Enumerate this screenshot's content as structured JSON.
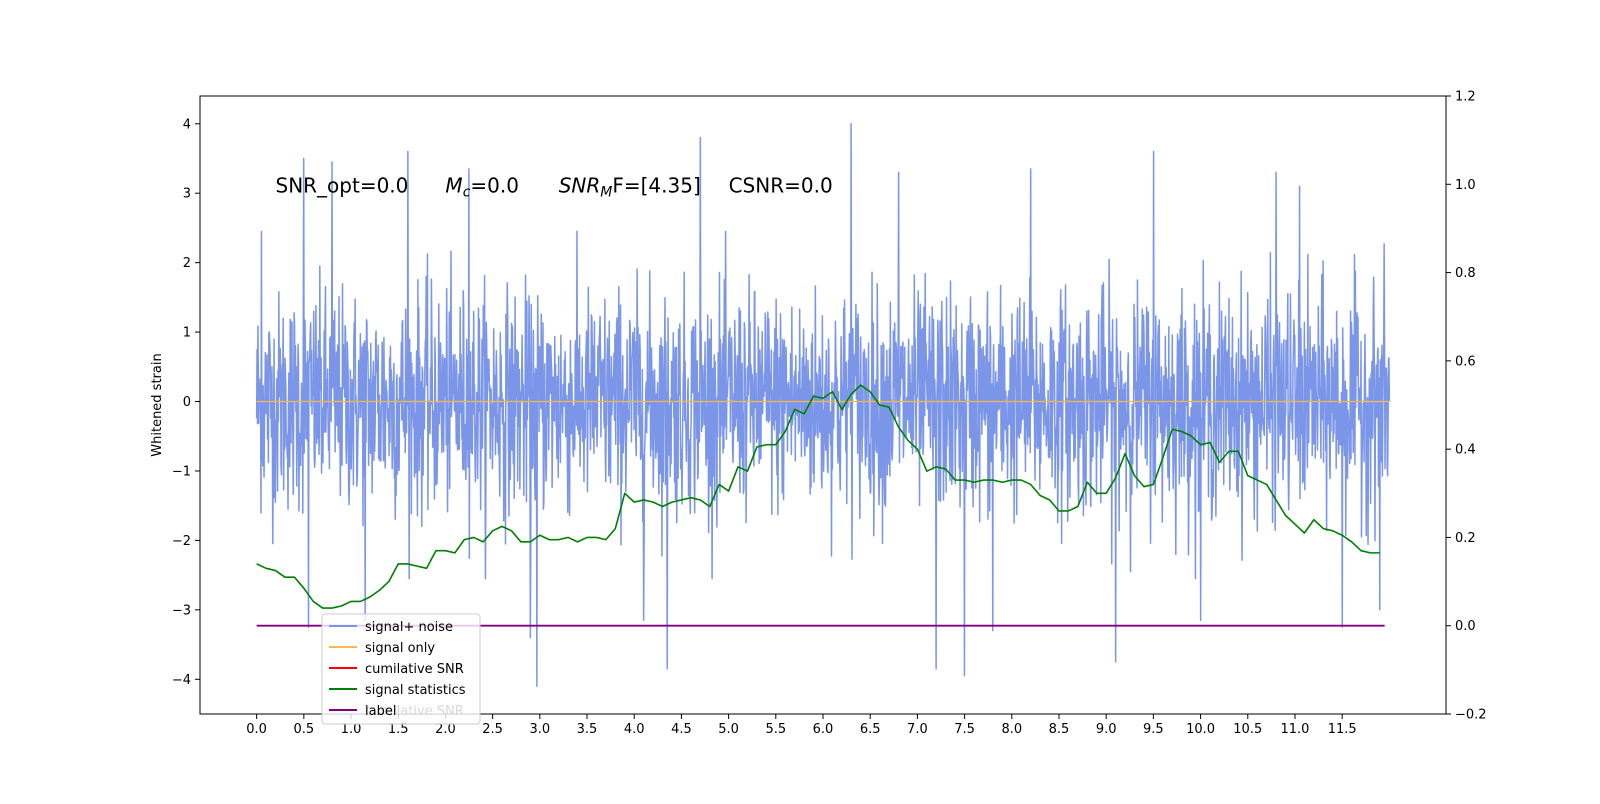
{
  "chart_data": {
    "type": "line",
    "title": "",
    "xlabel": "",
    "ylabel": "Whitened strain",
    "xlim": [
      -0.6,
      12.6
    ],
    "ylim": [
      -4.5,
      4.4
    ],
    "y2lim": [
      -0.2,
      1.2
    ],
    "xticks": [
      0.0,
      0.5,
      1.0,
      1.5,
      2.0,
      2.5,
      3.0,
      3.5,
      4.0,
      4.5,
      5.0,
      5.5,
      6.0,
      6.5,
      7.0,
      7.5,
      8.0,
      8.5,
      9.0,
      9.5,
      10.0,
      10.5,
      11.0,
      11.5
    ],
    "xtick_labels": [
      "0.0",
      "0.5",
      "1.0",
      "1.5",
      "2.0",
      "2.5",
      "3.0",
      "3.5",
      "4.0",
      "4.5",
      "5.0",
      "5.5",
      "6.0",
      "6.5",
      "7.0",
      "7.5",
      "8.0",
      "8.5",
      "9.0",
      "9.5",
      "10.0",
      "10.5",
      "11.0",
      "11.5"
    ],
    "yticks": [
      -4,
      -3,
      -2,
      -1,
      0,
      1,
      2,
      3,
      4
    ],
    "ytick_labels": [
      "−4",
      "−3",
      "−2",
      "−1",
      "0",
      "1",
      "2",
      "3",
      "4"
    ],
    "y2ticks": [
      -0.2,
      0.0,
      0.2,
      0.4,
      0.6,
      0.8,
      1.0,
      1.2
    ],
    "y2tick_labels": [
      "−0.2",
      "0.0",
      "0.2",
      "0.4",
      "0.6",
      "0.8",
      "1.0",
      "1.2"
    ],
    "annotations": [
      {
        "text": "SNR_opt=0.0",
        "x": 0.2,
        "y": 3.1
      },
      {
        "text": "M",
        "sub": "c",
        "rest": "=0.0",
        "x": 2.0,
        "y": 3.1
      },
      {
        "text": "SNR",
        "sub": "M",
        "rest": "F=[4.35]",
        "x": 3.2,
        "y": 3.1
      },
      {
        "text": "CSNR=0.0",
        "x": 5.0,
        "y": 3.1
      }
    ],
    "legend": {
      "placement": "lower-left",
      "entries": [
        "signal+ noise",
        "signal only",
        "cumilative SNR",
        "signal statistics",
        "label"
      ],
      "overlapped_text": "cumilative SNR"
    },
    "series": [
      {
        "name": "signal+ noise",
        "color": "#7b96e8",
        "axis": "left",
        "x_range": [
          0.0,
          12.0
        ],
        "band_typical": [
          -1.6,
          1.6
        ],
        "peaks": [
          {
            "x": 0.05,
            "y": 2.45
          },
          {
            "x": 0.5,
            "y": 3.5
          },
          {
            "x": 0.8,
            "y": 3.45
          },
          {
            "x": 1.6,
            "y": 3.6
          },
          {
            "x": 2.25,
            "y": 3.35
          },
          {
            "x": 4.7,
            "y": 3.8
          },
          {
            "x": 6.3,
            "y": 4.0
          },
          {
            "x": 6.8,
            "y": 3.3
          },
          {
            "x": 8.2,
            "y": 3.35
          },
          {
            "x": 9.5,
            "y": 3.6
          },
          {
            "x": 10.8,
            "y": 3.3
          },
          {
            "x": 11.05,
            "y": 3.1
          }
        ],
        "troughs": [
          {
            "x": 0.55,
            "y": -3.25
          },
          {
            "x": 1.15,
            "y": -3.15
          },
          {
            "x": 2.9,
            "y": -3.4
          },
          {
            "x": 2.97,
            "y": -4.1
          },
          {
            "x": 4.1,
            "y": -3.15
          },
          {
            "x": 4.35,
            "y": -3.85
          },
          {
            "x": 7.2,
            "y": -3.85
          },
          {
            "x": 7.5,
            "y": -3.95
          },
          {
            "x": 7.8,
            "y": -3.3
          },
          {
            "x": 9.1,
            "y": -3.75
          },
          {
            "x": 10.0,
            "y": -3.15
          },
          {
            "x": 11.5,
            "y": -3.25
          },
          {
            "x": 11.9,
            "y": -3.0
          }
        ]
      },
      {
        "name": "signal only",
        "color": "#ffb74d",
        "axis": "left",
        "x": [
          0.0,
          12.0
        ],
        "y": [
          0.0,
          0.0
        ]
      },
      {
        "name": "cumilative SNR",
        "color": "#ff0000",
        "axis": "right",
        "x": [],
        "y": []
      },
      {
        "name": "signal statistics",
        "color": "#008000",
        "axis": "right",
        "x": [
          0.0,
          0.1,
          0.2,
          0.3,
          0.4,
          0.5,
          0.6,
          0.7,
          0.8,
          0.9,
          1.0,
          1.1,
          1.2,
          1.3,
          1.4,
          1.5,
          1.6,
          1.7,
          1.8,
          1.9,
          2.0,
          2.1,
          2.2,
          2.3,
          2.4,
          2.5,
          2.6,
          2.7,
          2.8,
          2.9,
          3.0,
          3.1,
          3.2,
          3.3,
          3.4,
          3.5,
          3.6,
          3.7,
          3.8,
          3.9,
          4.0,
          4.1,
          4.2,
          4.3,
          4.4,
          4.5,
          4.6,
          4.7,
          4.8,
          4.9,
          5.0,
          5.1,
          5.2,
          5.3,
          5.4,
          5.5,
          5.6,
          5.7,
          5.8,
          5.9,
          6.0,
          6.1,
          6.2,
          6.3,
          6.4,
          6.5,
          6.6,
          6.7,
          6.8,
          6.9,
          7.0,
          7.1,
          7.2,
          7.3,
          7.4,
          7.5,
          7.6,
          7.7,
          7.8,
          7.9,
          8.0,
          8.1,
          8.2,
          8.3,
          8.4,
          8.5,
          8.6,
          8.7,
          8.8,
          8.9,
          9.0,
          9.1,
          9.2,
          9.3,
          9.4,
          9.5,
          9.6,
          9.7,
          9.8,
          9.9,
          10.0,
          10.1,
          10.2,
          10.3,
          10.4,
          10.5,
          10.6,
          10.7,
          10.8,
          10.9,
          11.0,
          11.1,
          11.2,
          11.3,
          11.4,
          11.5,
          11.6,
          11.7,
          11.8,
          11.9
        ],
        "y": [
          0.14,
          0.13,
          0.125,
          0.11,
          0.11,
          0.085,
          0.055,
          0.04,
          0.04,
          0.045,
          0.055,
          0.055,
          0.065,
          0.08,
          0.1,
          0.14,
          0.14,
          0.135,
          0.13,
          0.17,
          0.17,
          0.165,
          0.195,
          0.2,
          0.19,
          0.215,
          0.225,
          0.215,
          0.19,
          0.19,
          0.205,
          0.195,
          0.195,
          0.2,
          0.19,
          0.2,
          0.2,
          0.195,
          0.22,
          0.3,
          0.28,
          0.285,
          0.28,
          0.27,
          0.28,
          0.285,
          0.29,
          0.285,
          0.27,
          0.32,
          0.305,
          0.36,
          0.35,
          0.405,
          0.41,
          0.41,
          0.44,
          0.49,
          0.48,
          0.52,
          0.515,
          0.53,
          0.49,
          0.525,
          0.545,
          0.53,
          0.5,
          0.495,
          0.45,
          0.42,
          0.4,
          0.35,
          0.36,
          0.355,
          0.33,
          0.33,
          0.325,
          0.33,
          0.33,
          0.325,
          0.33,
          0.33,
          0.32,
          0.295,
          0.285,
          0.26,
          0.26,
          0.27,
          0.325,
          0.3,
          0.3,
          0.335,
          0.39,
          0.34,
          0.315,
          0.32,
          0.38,
          0.445,
          0.44,
          0.43,
          0.41,
          0.415,
          0.37,
          0.395,
          0.395,
          0.34,
          0.33,
          0.32,
          0.285,
          0.25,
          0.23,
          0.21,
          0.24,
          0.22,
          0.215,
          0.205,
          0.19,
          0.17,
          0.165,
          0.165
        ]
      },
      {
        "name": "label",
        "color": "#800080",
        "axis": "right",
        "x": [
          0.0,
          11.95
        ],
        "y": [
          0.0,
          0.0
        ]
      }
    ]
  }
}
